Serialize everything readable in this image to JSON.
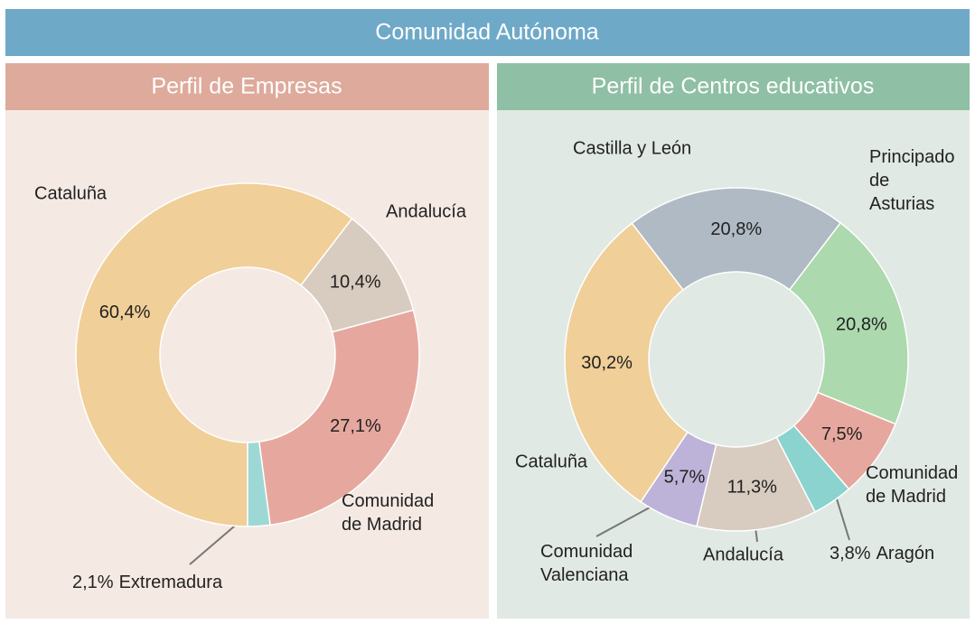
{
  "header": "Comunidad Autónoma",
  "chart_data": [
    {
      "type": "pie",
      "title": "Perfil de Empresas",
      "categories": [
        "Cataluña",
        "Andalucía",
        "Comunidad de Madrid",
        "Extremadura"
      ],
      "values": [
        60.4,
        10.4,
        27.1,
        2.1
      ],
      "value_labels": [
        "60,4%",
        "10,4%",
        "27,1%",
        "2,1%"
      ],
      "colors": [
        "#f0cf98",
        "#d8cbbf",
        "#e6a89e",
        "#9ed8d4"
      ]
    },
    {
      "type": "pie",
      "title": "Perfil de Centros educativos",
      "categories": [
        "Castilla y León",
        "Principado de Asturias",
        "Comunidad de Madrid",
        "Aragón",
        "Andalucía",
        "Comunidad Valenciana",
        "Cataluña"
      ],
      "values": [
        20.8,
        20.8,
        7.5,
        3.8,
        11.3,
        5.7,
        30.2
      ],
      "value_labels": [
        "20,8%",
        "20,8%",
        "7,5%",
        "3,8%",
        "11,3%",
        "5,7%",
        "30,2%"
      ],
      "colors": [
        "#b0bac4",
        "#acd9ad",
        "#e6a89e",
        "#8ad3cf",
        "#d8cbbf",
        "#bdb3d8",
        "#f0cf98"
      ]
    }
  ]
}
